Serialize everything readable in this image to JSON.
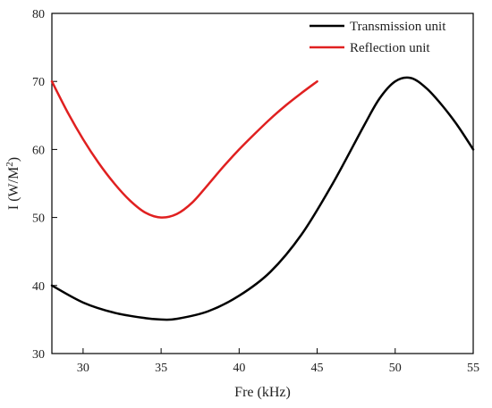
{
  "chart_data": {
    "type": "line",
    "title": "",
    "xlabel": "Fre (kHz)",
    "ylabel_main": "I (W/M",
    "ylabel_sup": "2",
    "ylabel_close": ")",
    "xlim": [
      28,
      55
    ],
    "ylim": [
      30,
      80
    ],
    "xticks": [
      30,
      35,
      40,
      45,
      50,
      55
    ],
    "yticks": [
      30,
      40,
      50,
      60,
      70,
      80
    ],
    "grid": false,
    "legend_position": "top-right",
    "series": [
      {
        "name": "Transmission unit",
        "color": "#000000",
        "x": [
          28,
          30,
          32,
          34,
          35,
          36,
          38,
          40,
          42,
          44,
          46,
          48,
          49,
          50,
          51,
          52,
          53,
          54,
          55
        ],
        "y": [
          40,
          37.5,
          36,
          35.2,
          35,
          35.1,
          36.2,
          38.5,
          42,
          47.5,
          55,
          63.5,
          67.5,
          70,
          70.5,
          69,
          66.5,
          63.5,
          60
        ]
      },
      {
        "name": "Reflection unit",
        "color": "#e02020",
        "x": [
          28,
          29,
          30,
          31,
          32,
          33,
          34,
          35,
          36,
          37,
          38,
          39,
          40,
          41,
          42,
          43,
          44,
          45
        ],
        "y": [
          70,
          65.5,
          61.5,
          58,
          55,
          52.5,
          50.7,
          50,
          50.5,
          52.2,
          54.8,
          57.5,
          60,
          62.3,
          64.5,
          66.5,
          68.3,
          70
        ]
      }
    ]
  }
}
